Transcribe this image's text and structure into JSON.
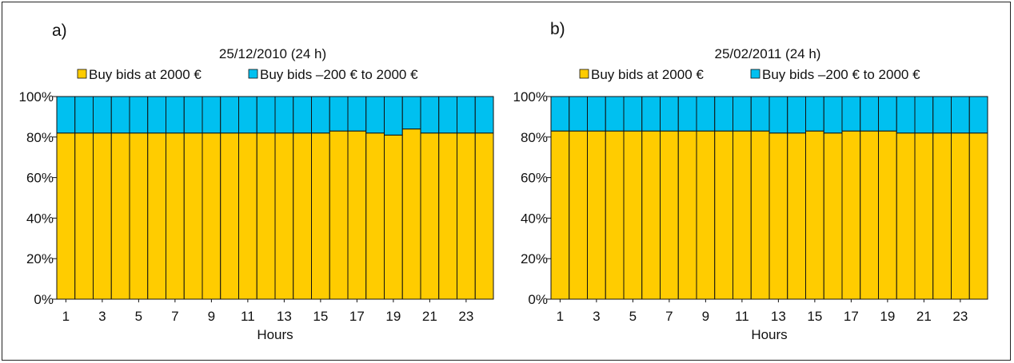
{
  "chart_data": [
    {
      "type": "bar",
      "stacked": true,
      "panel_label": "a)",
      "title": "25/12/2010 (24 h)",
      "xlabel": "Hours",
      "ylabel": "",
      "ylim": [
        0,
        100
      ],
      "y_ticks": [
        "0%",
        "20%",
        "40%",
        "60%",
        "80%",
        "100%"
      ],
      "x_tick_labels": [
        "1",
        "3",
        "5",
        "7",
        "9",
        "11",
        "13",
        "15",
        "17",
        "19",
        "21",
        "23"
      ],
      "categories": [
        1,
        2,
        3,
        4,
        5,
        6,
        7,
        8,
        9,
        10,
        11,
        12,
        13,
        14,
        15,
        16,
        17,
        18,
        19,
        20,
        21,
        22,
        23,
        24
      ],
      "legend_position": "top",
      "series": [
        {
          "name": "Buy bids at 2000 €",
          "color": "#ffcc00",
          "values": [
            82,
            82,
            82,
            82,
            82,
            82,
            82,
            82,
            82,
            82,
            82,
            82,
            82,
            82,
            82,
            83,
            83,
            82,
            81,
            84,
            82,
            82,
            82,
            82
          ]
        },
        {
          "name": "Buy bids –200 € to 2000 €",
          "color": "#00c0f0",
          "values": [
            18,
            18,
            18,
            18,
            18,
            18,
            18,
            18,
            18,
            18,
            18,
            18,
            18,
            18,
            18,
            17,
            17,
            18,
            19,
            16,
            18,
            18,
            18,
            18
          ]
        }
      ]
    },
    {
      "type": "bar",
      "stacked": true,
      "panel_label": "b)",
      "title": "25/02/2011 (24 h)",
      "xlabel": "Hours",
      "ylabel": "",
      "ylim": [
        0,
        100
      ],
      "y_ticks": [
        "0%",
        "20%",
        "40%",
        "60%",
        "80%",
        "100%"
      ],
      "x_tick_labels": [
        "1",
        "3",
        "5",
        "7",
        "9",
        "11",
        "13",
        "15",
        "17",
        "19",
        "21",
        "23"
      ],
      "categories": [
        1,
        2,
        3,
        4,
        5,
        6,
        7,
        8,
        9,
        10,
        11,
        12,
        13,
        14,
        15,
        16,
        17,
        18,
        19,
        20,
        21,
        22,
        23,
        24
      ],
      "legend_position": "top",
      "series": [
        {
          "name": "Buy bids at 2000 €",
          "color": "#ffcc00",
          "values": [
            83,
            83,
            83,
            83,
            83,
            83,
            83,
            83,
            83,
            83,
            83,
            83,
            82,
            82,
            83,
            82,
            83,
            83,
            83,
            82,
            82,
            82,
            82,
            82
          ]
        },
        {
          "name": "Buy bids –200 € to 2000 €",
          "color": "#00c0f0",
          "values": [
            17,
            17,
            17,
            17,
            17,
            17,
            17,
            17,
            17,
            17,
            17,
            17,
            18,
            18,
            17,
            18,
            17,
            17,
            17,
            18,
            18,
            18,
            18,
            18
          ]
        }
      ]
    }
  ]
}
